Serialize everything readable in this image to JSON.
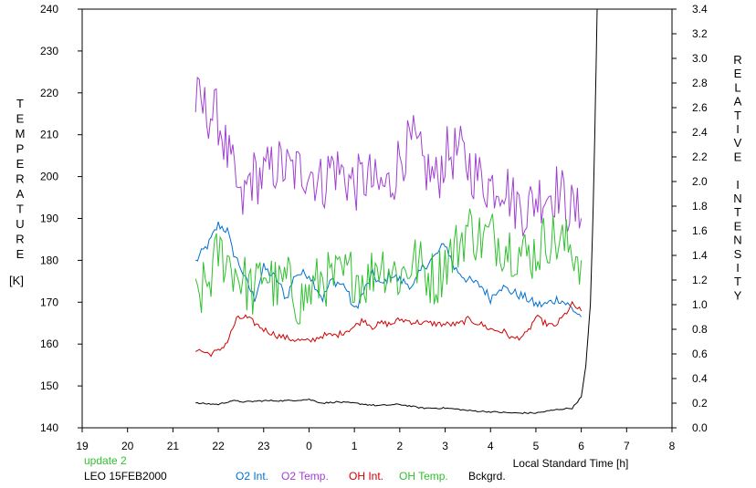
{
  "chart_data": {
    "type": "line",
    "xlabel": "Local Standard Time [h]",
    "ylabel_left": "TEMPERATURE",
    "ylabel_left_unit": "[K]",
    "ylabel_right": "RELATIVE INTENSITY",
    "x_ticks": [
      "19",
      "20",
      "21",
      "22",
      "23",
      "0",
      "1",
      "2",
      "3",
      "4",
      "5",
      "6",
      "7",
      "8"
    ],
    "x_range": [
      19,
      32
    ],
    "ylim_left": [
      140,
      240
    ],
    "ylim_right": [
      0.0,
      3.4
    ],
    "y_ticks_left": [
      "140",
      "150",
      "160",
      "170",
      "180",
      "190",
      "200",
      "210",
      "220",
      "230",
      "240"
    ],
    "y_ticks_right": [
      "0.0",
      "0.2",
      "0.4",
      "0.6",
      "0.8",
      "1.0",
      "1.2",
      "1.4",
      "1.6",
      "1.8",
      "2.0",
      "2.2",
      "2.4",
      "2.6",
      "2.8",
      "3.0",
      "3.2",
      "3.4"
    ],
    "grid": false,
    "annotations": {
      "update": "update 2",
      "site_date": "LEO 15FEB2000"
    },
    "colors": {
      "o2_int": "#0070d0",
      "o2_temp": "#a040d0",
      "oh_int": "#d00000",
      "oh_temp": "#30c030",
      "bckgrd": "#000000"
    },
    "series": [
      {
        "name": "O2 Int.",
        "axis": "right",
        "x": [
          21.5,
          21.8,
          22.0,
          22.2,
          22.3,
          22.5,
          22.6,
          22.8,
          23.0,
          23.3,
          23.5,
          23.7,
          24.0,
          24.3,
          24.5,
          24.8,
          25.0,
          25.2,
          25.4,
          25.6,
          25.8,
          26.0,
          26.3,
          26.5,
          26.8,
          27.0,
          27.2,
          27.5,
          27.8,
          28.0,
          28.2,
          28.5,
          28.8,
          29.0,
          29.2,
          29.5,
          29.7,
          30.0
        ],
        "values": [
          1.35,
          1.5,
          1.65,
          1.6,
          1.45,
          1.3,
          1.2,
          1.05,
          1.3,
          1.2,
          1.05,
          1.25,
          1.25,
          1.05,
          1.2,
          1.15,
          0.95,
          1.1,
          1.25,
          1.15,
          1.25,
          1.2,
          1.15,
          1.3,
          1.4,
          1.5,
          1.3,
          1.2,
          1.15,
          1.05,
          1.15,
          1.1,
          1.05,
          1.0,
          1.0,
          1.05,
          1.0,
          0.9
        ]
      },
      {
        "name": "O2 Temp.",
        "axis": "left",
        "x": [
          21.5,
          21.7,
          22.0,
          22.2,
          22.4,
          22.5,
          22.7,
          23.0,
          23.3,
          23.6,
          24.0,
          24.3,
          24.5,
          24.8,
          25.0,
          25.3,
          25.5,
          25.8,
          26.0,
          26.3,
          26.5,
          26.8,
          27.0,
          27.3,
          27.5,
          27.8,
          28.0,
          28.3,
          28.5,
          28.8,
          29.0,
          29.2,
          29.5,
          29.7,
          30.0
        ],
        "values": [
          218,
          216,
          214,
          205,
          198,
          192,
          200,
          200,
          203,
          201,
          202,
          198,
          203,
          200,
          198,
          200,
          197,
          198,
          205,
          208,
          203,
          199,
          205,
          206,
          203,
          199,
          198,
          199,
          194,
          192,
          195,
          196,
          197,
          193,
          190
        ]
      },
      {
        "name": "OH Int.",
        "axis": "right",
        "x": [
          21.5,
          21.8,
          22.0,
          22.2,
          22.4,
          22.6,
          22.8,
          23.0,
          23.3,
          23.6,
          24.0,
          24.3,
          24.6,
          25.0,
          25.2,
          25.4,
          25.6,
          25.8,
          26.0,
          26.3,
          26.6,
          27.0,
          27.3,
          27.5,
          27.8,
          28.0,
          28.3,
          28.5,
          28.8,
          29.0,
          29.2,
          29.4,
          29.6,
          29.8,
          30.0
        ],
        "values": [
          0.64,
          0.6,
          0.62,
          0.7,
          0.88,
          0.9,
          0.85,
          0.8,
          0.75,
          0.72,
          0.7,
          0.75,
          0.75,
          0.82,
          0.88,
          0.82,
          0.85,
          0.84,
          0.88,
          0.86,
          0.85,
          0.84,
          0.84,
          0.88,
          0.84,
          0.8,
          0.78,
          0.72,
          0.76,
          0.9,
          0.85,
          0.82,
          0.9,
          1.0,
          0.95
        ]
      },
      {
        "name": "OH Temp.",
        "axis": "left",
        "x": [
          21.5,
          21.8,
          22.0,
          22.2,
          22.5,
          22.8,
          23.0,
          23.3,
          23.5,
          23.8,
          24.0,
          24.3,
          24.5,
          24.8,
          25.0,
          25.3,
          25.5,
          25.8,
          26.0,
          26.3,
          26.5,
          26.8,
          27.0,
          27.2,
          27.5,
          27.8,
          28.0,
          28.3,
          28.5,
          28.8,
          29.0,
          29.3,
          29.5,
          29.8,
          30.0
        ],
        "values": [
          170,
          175,
          182,
          180,
          176,
          172,
          178,
          173,
          175,
          170,
          172,
          176,
          175,
          176,
          177,
          175,
          180,
          178,
          176,
          180,
          178,
          175,
          180,
          182,
          188,
          185,
          186,
          184,
          183,
          181,
          182,
          186,
          184,
          183,
          180
        ]
      },
      {
        "name": "Bckgrd.",
        "axis": "right",
        "x": [
          21.5,
          22.0,
          22.3,
          22.6,
          23.0,
          23.5,
          24.0,
          24.3,
          24.6,
          25.0,
          25.5,
          26.0,
          26.5,
          27.0,
          27.3,
          27.5,
          28.0,
          28.5,
          29.0,
          29.5,
          29.8,
          30.0,
          30.1,
          30.2,
          30.25,
          30.3,
          30.35
        ],
        "values": [
          0.2,
          0.19,
          0.22,
          0.21,
          0.22,
          0.22,
          0.23,
          0.2,
          0.21,
          0.2,
          0.18,
          0.19,
          0.16,
          0.16,
          0.15,
          0.14,
          0.13,
          0.12,
          0.12,
          0.15,
          0.16,
          0.25,
          0.5,
          1.0,
          1.6,
          2.4,
          3.4
        ]
      }
    ]
  }
}
